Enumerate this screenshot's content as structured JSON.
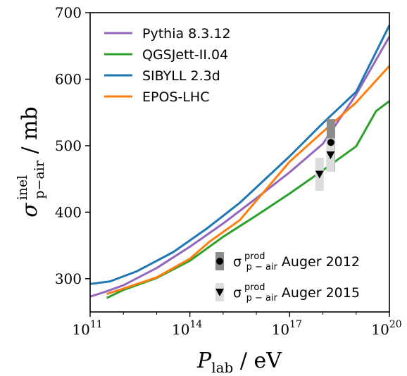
{
  "chart_data": {
    "type": "line",
    "xlabel": {
      "main": "P",
      "sub": "lab",
      "unit": " / eV"
    },
    "ylabel": {
      "main": "σ",
      "sup": "inel",
      "sub": "p−air",
      "unit": " / mb"
    },
    "xscale": "log",
    "xlim_log10": [
      11,
      20
    ],
    "ylim": [
      250,
      700
    ],
    "xticks": [
      {
        "base": "10",
        "exp": "11",
        "log10": 11
      },
      {
        "base": "10",
        "exp": "14",
        "log10": 14
      },
      {
        "base": "10",
        "exp": "17",
        "log10": 17
      },
      {
        "base": "10",
        "exp": "20",
        "log10": 20
      }
    ],
    "yticks": [
      300,
      400,
      500,
      600,
      700
    ],
    "legend_position": "top-left",
    "series": [
      {
        "name": "Pythia 8.3.12",
        "color": "#9467bd",
        "x_log10": [
          11,
          11.5,
          12,
          13,
          14,
          15,
          16,
          17,
          18,
          19,
          20
        ],
        "y": [
          273,
          281,
          290,
          316,
          348,
          383,
          421,
          460,
          503,
          577,
          664
        ]
      },
      {
        "name": "QGSJett-II.04",
        "color": "#2ca02c",
        "x_log10": [
          11.5,
          12,
          13,
          14,
          15,
          16,
          17,
          18,
          19,
          19.6,
          20
        ],
        "y": [
          271,
          283,
          301,
          327,
          363,
          395,
          428,
          463,
          499,
          552,
          567
        ]
      },
      {
        "name": "SIBYLL 2.3d",
        "color": "#1f77b4",
        "x_log10": [
          11,
          11.6,
          12.4,
          13.5,
          14.5,
          15.5,
          17,
          18,
          19,
          20
        ],
        "y": [
          292,
          296,
          311,
          340,
          375,
          414,
          484,
          534,
          581,
          681
        ]
      },
      {
        "name": "EPOS-LHC",
        "color": "#ff7f0e",
        "x_log10": [
          11.5,
          12,
          13,
          14,
          14.6,
          15.5,
          17,
          18,
          19,
          20
        ],
        "y": [
          277,
          285,
          302,
          330,
          356,
          388,
          476,
          521,
          565,
          620
        ]
      }
    ],
    "measurements": [
      {
        "name": "Auger 2012",
        "label_main": "σ",
        "label_sup": "prod",
        "label_sub": "p − air",
        "label_text": "Auger 2012",
        "marker": "circle",
        "x_log10": 18.24,
        "y": 505,
        "err_low": 461,
        "err_high": 540,
        "err_color": "#8c8c8c"
      },
      {
        "name": "Auger 2015",
        "label_main": "σ",
        "label_sup": "prod",
        "label_sub": "p − air",
        "label_text": "Auger 2015",
        "marker": "triangle-down",
        "x_log10": 17.9,
        "y": 457,
        "err_low": 432,
        "err_high": 482,
        "err_color": "#dcdcdc"
      },
      {
        "name": "Auger 2015",
        "marker": "triangle-down",
        "x_log10": 18.23,
        "y": 486,
        "err_low": 461,
        "err_high": 511,
        "err_color": "#dcdcdc"
      }
    ]
  }
}
